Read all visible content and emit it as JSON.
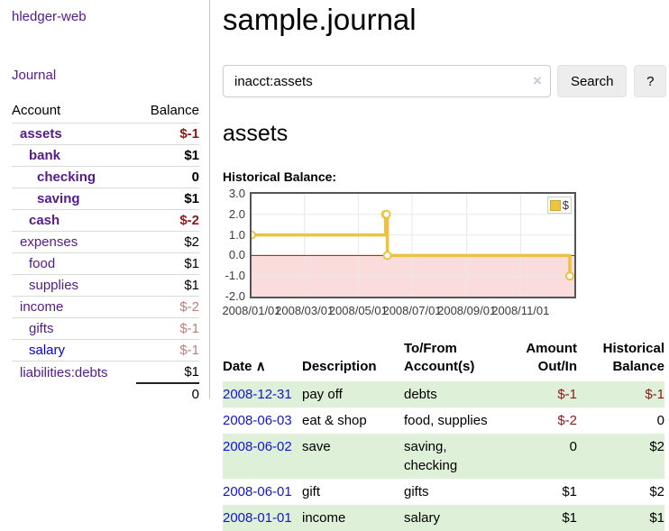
{
  "app": {
    "title": "hledger-web",
    "nav_journal": "Journal"
  },
  "sidebar": {
    "headers": {
      "account": "Account",
      "balance": "Balance"
    },
    "accounts": [
      {
        "name": "assets",
        "level": 1,
        "bold": true,
        "balance": "$-1",
        "negative": "strong"
      },
      {
        "name": "bank",
        "level": 2,
        "bold": true,
        "balance": "$1",
        "negative": "none"
      },
      {
        "name": "checking",
        "level": 3,
        "bold": true,
        "balance": "0",
        "negative": "none"
      },
      {
        "name": "saving",
        "level": 3,
        "bold": true,
        "balance": "$1",
        "negative": "none"
      },
      {
        "name": "cash",
        "level": 2,
        "bold": true,
        "balance": "$-2",
        "negative": "strong"
      },
      {
        "name": "expenses",
        "level": 1,
        "bold": false,
        "balance": "$2",
        "negative": "none"
      },
      {
        "name": "food",
        "level": 2,
        "bold": false,
        "balance": "$1",
        "negative": "none"
      },
      {
        "name": "supplies",
        "level": 2,
        "bold": false,
        "balance": "$1",
        "negative": "none"
      },
      {
        "name": "income",
        "level": 1,
        "bold": false,
        "balance": "$-2",
        "negative": "muted"
      },
      {
        "name": "gifts",
        "level": 2,
        "bold": false,
        "balance": "$-1",
        "negative": "muted"
      },
      {
        "name": "salary",
        "level": 2,
        "bold": false,
        "balance": "$-1",
        "negative": "muted",
        "link": "unvisited"
      },
      {
        "name": "liabilities:debts",
        "level": 1,
        "bold": false,
        "balance": "$1",
        "negative": "none"
      }
    ],
    "total": "0"
  },
  "header": {
    "title": "sample.journal"
  },
  "search": {
    "value": "inacct:assets",
    "clear_icon": "×",
    "button_label": "Search",
    "help_label": "?"
  },
  "account_page": {
    "heading": "assets"
  },
  "chart_data": {
    "type": "line",
    "title": "Historical Balance:",
    "step": true,
    "series": [
      {
        "name": "$",
        "color": "#edc240",
        "points": [
          [
            "2008-01-01",
            1
          ],
          [
            "2008-06-01",
            2
          ],
          [
            "2008-06-02",
            2
          ],
          [
            "2008-06-03",
            0
          ],
          [
            "2008-12-31",
            -1
          ]
        ]
      }
    ],
    "ylim": [
      -2,
      3
    ],
    "y_ticks": [
      "3.0",
      "2.0",
      "1.0",
      "0.0",
      "-1.0",
      "-2.0"
    ],
    "x_range": [
      "2008-01-01",
      "2008-12-31"
    ],
    "x_ticks": [
      {
        "label": "2008/01/01",
        "date": "2008-01-01"
      },
      {
        "label": "2008/03/01",
        "date": "2008-03-01"
      },
      {
        "label": "2008/05/01",
        "date": "2008-05-01"
      },
      {
        "label": "2008/07/01",
        "date": "2008-07-01"
      },
      {
        "label": "2008/09/01",
        "date": "2008-09-01"
      },
      {
        "label": "2008/11/01",
        "date": "2008-11-01"
      }
    ],
    "legend": {
      "label": "$",
      "position": "top-right"
    },
    "grid": true,
    "zero_line_color": "#8b1a1a",
    "negative_fill": "#fbdcdc",
    "gridline_color": "#e8e8e8"
  },
  "register": {
    "headers": {
      "date": "Date",
      "sort_icon": "∧",
      "description": "Description",
      "account": "To/From Account(s)",
      "amount": "Amount Out/In",
      "balance": "Historical Balance"
    },
    "rows": [
      {
        "date": "2008-12-31",
        "description": "pay off",
        "account": "debts",
        "amount": "$-1",
        "balance": "$-1",
        "amount_negative": true,
        "balance_negative": true,
        "shaded": true
      },
      {
        "date": "2008-06-03",
        "description": "eat & shop",
        "account": "food, supplies",
        "amount": "$-2",
        "balance": "0",
        "amount_negative": true,
        "balance_negative": false,
        "shaded": false
      },
      {
        "date": "2008-06-02",
        "description": "save",
        "account": "saving, checking",
        "amount": "0",
        "balance": "$2",
        "amount_negative": false,
        "balance_negative": false,
        "shaded": true
      },
      {
        "date": "2008-06-01",
        "description": "gift",
        "account": "gifts",
        "amount": "$1",
        "balance": "$2",
        "amount_negative": false,
        "balance_negative": false,
        "shaded": false
      },
      {
        "date": "2008-01-01",
        "description": "income",
        "account": "salary",
        "amount": "$1",
        "balance": "$1",
        "amount_negative": false,
        "balance_negative": false,
        "shaded": true
      }
    ]
  },
  "colors": {
    "link_visited_purple": "#551a8b",
    "link_blue": "#1414d6",
    "negative_strong": "#8b1a1a",
    "negative_muted": "#bd7e7e",
    "row_stripe_green": "#dff0d8",
    "series_gold": "#edc240",
    "button_gray": "#ededed"
  }
}
